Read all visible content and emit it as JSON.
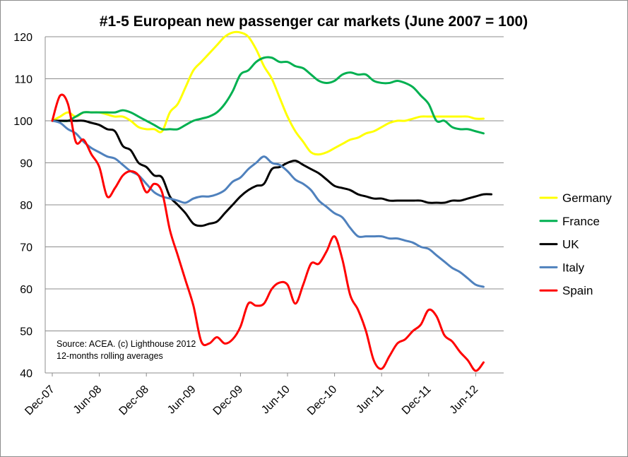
{
  "chart_data": {
    "type": "line",
    "title": "#1-5 European new passenger car markets (June 2007 = 100)",
    "xlabel": "",
    "ylabel": "",
    "x_ticks": [
      "Dec-07",
      "Jun-08",
      "Dec-08",
      "Jun-09",
      "Dec-09",
      "Jun-10",
      "Dec-10",
      "Jun-11",
      "Dec-11",
      "Jun-12"
    ],
    "x_range_months": [
      0,
      56
    ],
    "ylim": [
      40,
      120
    ],
    "y_ticks": [
      40,
      50,
      60,
      70,
      80,
      90,
      100,
      110,
      120
    ],
    "grid": "horizontal",
    "legend_position": "right",
    "annotations": [
      "Source: ACEA. (c) Lighthouse 2012",
      "12-months rolling averages"
    ],
    "series": [
      {
        "name": "Germany",
        "color": "#ffff00",
        "points": [
          [
            0,
            100
          ],
          [
            1,
            101
          ],
          [
            2,
            102
          ],
          [
            3,
            101
          ],
          [
            4,
            102
          ],
          [
            5,
            102
          ],
          [
            6,
            102
          ],
          [
            7,
            101.5
          ],
          [
            8,
            101
          ],
          [
            9,
            101
          ],
          [
            10,
            100
          ],
          [
            11,
            98.5
          ],
          [
            12,
            98
          ],
          [
            13,
            98
          ],
          [
            14,
            97.5
          ],
          [
            15,
            102
          ],
          [
            16,
            104
          ],
          [
            17,
            108
          ],
          [
            18,
            112
          ],
          [
            19,
            114
          ],
          [
            20,
            116
          ],
          [
            21,
            118
          ],
          [
            22,
            120
          ],
          [
            23,
            121
          ],
          [
            24,
            121
          ],
          [
            25,
            120
          ],
          [
            26,
            117
          ],
          [
            27,
            113
          ],
          [
            28,
            110
          ],
          [
            29,
            105.5
          ],
          [
            30,
            101
          ],
          [
            31,
            97.5
          ],
          [
            32,
            95
          ],
          [
            33,
            92.5
          ],
          [
            34,
            92
          ],
          [
            35,
            92.5
          ],
          [
            36,
            93.5
          ],
          [
            37,
            94.5
          ],
          [
            38,
            95.5
          ],
          [
            39,
            96
          ],
          [
            40,
            97
          ],
          [
            41,
            97.5
          ],
          [
            42,
            98.5
          ],
          [
            43,
            99.5
          ],
          [
            44,
            100
          ],
          [
            45,
            100
          ],
          [
            46,
            100.5
          ],
          [
            47,
            101
          ],
          [
            48,
            101
          ],
          [
            49,
            101
          ],
          [
            50,
            101
          ],
          [
            51,
            101
          ],
          [
            52,
            101
          ],
          [
            53,
            101
          ],
          [
            54,
            100.5
          ],
          [
            55,
            100.5
          ]
        ]
      },
      {
        "name": "France",
        "color": "#00b050",
        "points": [
          [
            0,
            100
          ],
          [
            1,
            100
          ],
          [
            2,
            100
          ],
          [
            3,
            101
          ],
          [
            4,
            102
          ],
          [
            5,
            102
          ],
          [
            6,
            102
          ],
          [
            7,
            102
          ],
          [
            8,
            102
          ],
          [
            9,
            102.5
          ],
          [
            10,
            102
          ],
          [
            11,
            101
          ],
          [
            12,
            100
          ],
          [
            13,
            99
          ],
          [
            14,
            98
          ],
          [
            15,
            98
          ],
          [
            16,
            98
          ],
          [
            17,
            99
          ],
          [
            18,
            100
          ],
          [
            19,
            100.5
          ],
          [
            20,
            101
          ],
          [
            21,
            102
          ],
          [
            22,
            104
          ],
          [
            23,
            107
          ],
          [
            24,
            111
          ],
          [
            25,
            112
          ],
          [
            26,
            114
          ],
          [
            27,
            115
          ],
          [
            28,
            115
          ],
          [
            29,
            114
          ],
          [
            30,
            114
          ],
          [
            31,
            113
          ],
          [
            32,
            112.5
          ],
          [
            33,
            111
          ],
          [
            34,
            109.5
          ],
          [
            35,
            109
          ],
          [
            36,
            109.5
          ],
          [
            37,
            111
          ],
          [
            38,
            111.5
          ],
          [
            39,
            111
          ],
          [
            40,
            111
          ],
          [
            41,
            109.5
          ],
          [
            42,
            109
          ],
          [
            43,
            109
          ],
          [
            44,
            109.5
          ],
          [
            45,
            109
          ],
          [
            46,
            108
          ],
          [
            47,
            106
          ],
          [
            48,
            104
          ],
          [
            49,
            100
          ],
          [
            50,
            100
          ],
          [
            51,
            98.5
          ],
          [
            52,
            98
          ],
          [
            53,
            98
          ],
          [
            54,
            97.5
          ],
          [
            55,
            97
          ]
        ]
      },
      {
        "name": "UK",
        "color": "#000000",
        "points": [
          [
            0,
            100
          ],
          [
            1,
            100
          ],
          [
            2,
            100
          ],
          [
            3,
            100
          ],
          [
            4,
            100
          ],
          [
            5,
            99.5
          ],
          [
            6,
            99
          ],
          [
            7,
            98
          ],
          [
            8,
            97.5
          ],
          [
            9,
            94
          ],
          [
            10,
            93
          ],
          [
            11,
            90
          ],
          [
            12,
            89
          ],
          [
            13,
            87
          ],
          [
            14,
            86.5
          ],
          [
            15,
            82
          ],
          [
            16,
            80
          ],
          [
            17,
            78
          ],
          [
            18,
            75.5
          ],
          [
            19,
            75
          ],
          [
            20,
            75.5
          ],
          [
            21,
            76
          ],
          [
            22,
            78
          ],
          [
            23,
            80
          ],
          [
            24,
            82
          ],
          [
            25,
            83.5
          ],
          [
            26,
            84.5
          ],
          [
            27,
            85
          ],
          [
            28,
            88.5
          ],
          [
            29,
            89
          ],
          [
            30,
            90
          ],
          [
            31,
            90.5
          ],
          [
            32,
            89.5
          ],
          [
            33,
            88.5
          ],
          [
            34,
            87.5
          ],
          [
            35,
            86
          ],
          [
            36,
            84.5
          ],
          [
            37,
            84
          ],
          [
            38,
            83.5
          ],
          [
            39,
            82.5
          ],
          [
            40,
            82
          ],
          [
            41,
            81.5
          ],
          [
            42,
            81.5
          ],
          [
            43,
            81
          ],
          [
            44,
            81
          ],
          [
            45,
            81
          ],
          [
            46,
            81
          ],
          [
            47,
            81
          ],
          [
            48,
            80.5
          ],
          [
            49,
            80.5
          ],
          [
            50,
            80.5
          ],
          [
            51,
            81
          ],
          [
            52,
            81
          ],
          [
            53,
            81.5
          ],
          [
            54,
            82
          ],
          [
            55,
            82.5
          ],
          [
            56,
            82.5
          ]
        ]
      },
      {
        "name": "Italy",
        "color": "#4f81bd",
        "points": [
          [
            0,
            100
          ],
          [
            1,
            99.5
          ],
          [
            2,
            98
          ],
          [
            3,
            97
          ],
          [
            4,
            95
          ],
          [
            5,
            93.5
          ],
          [
            6,
            92.5
          ],
          [
            7,
            91.5
          ],
          [
            8,
            91
          ],
          [
            9,
            89.5
          ],
          [
            10,
            88
          ],
          [
            11,
            87
          ],
          [
            12,
            85
          ],
          [
            13,
            83
          ],
          [
            14,
            82
          ],
          [
            15,
            81.5
          ],
          [
            16,
            81
          ],
          [
            17,
            80.5
          ],
          [
            18,
            81.5
          ],
          [
            19,
            82
          ],
          [
            20,
            82
          ],
          [
            21,
            82.5
          ],
          [
            22,
            83.5
          ],
          [
            23,
            85.5
          ],
          [
            24,
            86.5
          ],
          [
            25,
            88.5
          ],
          [
            26,
            90
          ],
          [
            27,
            91.5
          ],
          [
            28,
            90
          ],
          [
            29,
            89.5
          ],
          [
            30,
            88
          ],
          [
            31,
            86
          ],
          [
            32,
            85
          ],
          [
            33,
            83.5
          ],
          [
            34,
            81
          ],
          [
            35,
            79.5
          ],
          [
            36,
            78
          ],
          [
            37,
            77
          ],
          [
            38,
            74.5
          ],
          [
            39,
            72.5
          ],
          [
            40,
            72.5
          ],
          [
            41,
            72.5
          ],
          [
            42,
            72.5
          ],
          [
            43,
            72
          ],
          [
            44,
            72
          ],
          [
            45,
            71.5
          ],
          [
            46,
            71
          ],
          [
            47,
            70
          ],
          [
            48,
            69.5
          ],
          [
            49,
            68
          ],
          [
            50,
            66.5
          ],
          [
            51,
            65
          ],
          [
            52,
            64
          ],
          [
            53,
            62.5
          ],
          [
            54,
            61
          ],
          [
            55,
            60.5
          ]
        ]
      },
      {
        "name": "Spain",
        "color": "#ff0000",
        "points": [
          [
            0,
            100
          ],
          [
            1,
            106
          ],
          [
            2,
            104
          ],
          [
            3,
            95
          ],
          [
            4,
            95.5
          ],
          [
            5,
            92
          ],
          [
            6,
            89
          ],
          [
            7,
            82
          ],
          [
            8,
            84
          ],
          [
            9,
            87
          ],
          [
            10,
            88
          ],
          [
            11,
            87
          ],
          [
            12,
            83
          ],
          [
            13,
            85
          ],
          [
            14,
            83
          ],
          [
            15,
            74
          ],
          [
            16,
            68
          ],
          [
            17,
            62
          ],
          [
            18,
            56
          ],
          [
            19,
            47.5
          ],
          [
            20,
            47
          ],
          [
            21,
            48.5
          ],
          [
            22,
            47
          ],
          [
            23,
            48
          ],
          [
            24,
            51
          ],
          [
            25,
            56.5
          ],
          [
            26,
            56
          ],
          [
            27,
            56.5
          ],
          [
            28,
            60
          ],
          [
            29,
            61.5
          ],
          [
            30,
            61
          ],
          [
            31,
            56.5
          ],
          [
            32,
            61
          ],
          [
            33,
            66
          ],
          [
            34,
            66
          ],
          [
            35,
            69
          ],
          [
            36,
            72.5
          ],
          [
            37,
            67
          ],
          [
            38,
            58.5
          ],
          [
            39,
            55
          ],
          [
            40,
            50
          ],
          [
            41,
            43
          ],
          [
            42,
            41
          ],
          [
            43,
            44
          ],
          [
            44,
            47
          ],
          [
            45,
            48
          ],
          [
            46,
            50
          ],
          [
            47,
            51.5
          ],
          [
            48,
            55
          ],
          [
            49,
            53.5
          ],
          [
            50,
            49
          ],
          [
            51,
            47.5
          ],
          [
            52,
            45
          ],
          [
            53,
            43
          ],
          [
            54,
            40.5
          ],
          [
            55,
            42.5
          ]
        ]
      }
    ]
  }
}
